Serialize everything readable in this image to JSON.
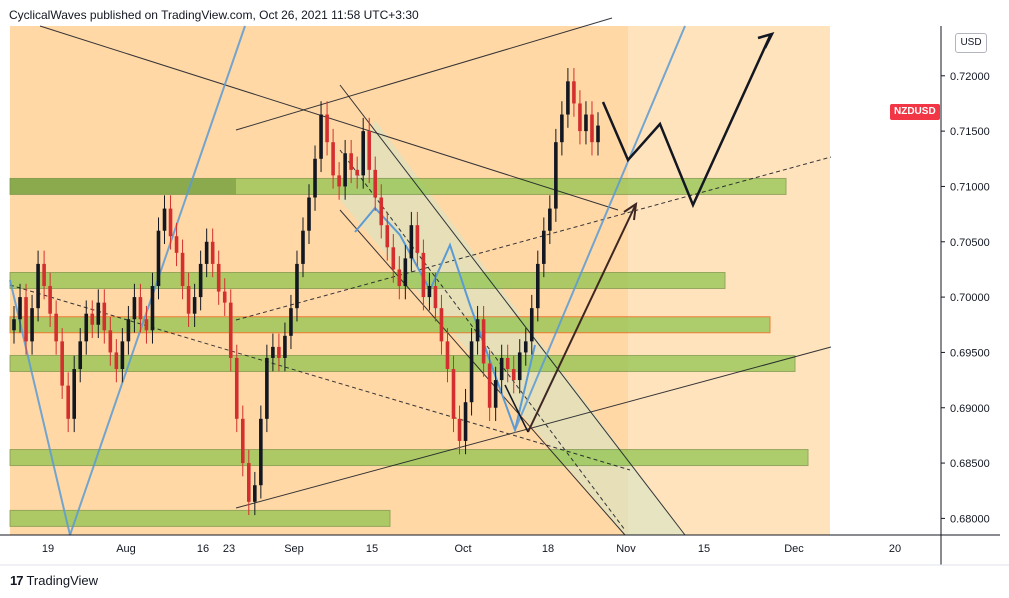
{
  "header": {
    "publish_line": "CyclicalWaves published on TradingView.com, Oct 26, 2021 11:58 UTC+3:30"
  },
  "footer": {
    "brand": "TradingView",
    "logo_glyph": "17"
  },
  "price_axis": {
    "currency_label": "USD",
    "symbol_label": "NZDUSD",
    "symbol_color": "#f23645",
    "ticks": [
      "0.72000",
      "0.71500",
      "0.71000",
      "0.70500",
      "0.70000",
      "0.69500",
      "0.69000",
      "0.68500",
      "0.68000"
    ]
  },
  "chart_data": {
    "type": "candlestick",
    "symbol": "NZDUSD",
    "y_range": [
      0.6785,
      0.7245
    ],
    "x_tick_labels": [
      "19",
      "Aug",
      "16",
      "23",
      "Sep",
      "15",
      "Oct",
      "18",
      "Nov",
      "15",
      "Dec",
      "20"
    ],
    "close_series": [
      0.698,
      0.7,
      0.696,
      0.699,
      0.703,
      0.701,
      0.6985,
      0.696,
      0.692,
      0.689,
      0.6935,
      0.696,
      0.6985,
      0.6975,
      0.6995,
      0.697,
      0.695,
      0.6935,
      0.696,
      0.698,
      0.7,
      0.698,
      0.697,
      0.701,
      0.706,
      0.708,
      0.7055,
      0.704,
      0.701,
      0.6985,
      0.7,
      0.703,
      0.705,
      0.703,
      0.7005,
      0.6995,
      0.6945,
      0.689,
      0.685,
      0.6815,
      0.683,
      0.689,
      0.6945,
      0.6955,
      0.6945,
      0.6965,
      0.699,
      0.703,
      0.706,
      0.709,
      0.7125,
      0.7165,
      0.714,
      0.711,
      0.71,
      0.713,
      0.7115,
      0.711,
      0.715,
      0.7115,
      0.709,
      0.7065,
      0.7045,
      0.7025,
      0.701,
      0.7035,
      0.7065,
      0.704,
      0.7,
      0.701,
      0.699,
      0.696,
      0.6935,
      0.689,
      0.687,
      0.6905,
      0.696,
      0.698,
      0.694,
      0.69,
      0.6925,
      0.6945,
      0.6935,
      0.6925,
      0.695,
      0.696,
      0.699,
      0.703,
      0.706,
      0.708,
      0.714,
      0.7165,
      0.7195,
      0.7175,
      0.715,
      0.7165,
      0.714,
      0.7155
    ],
    "levels": [
      0.71,
      0.7015,
      0.6975,
      0.694,
      0.6855,
      0.68
    ],
    "level_color": "#8bc34a",
    "bull_color": "#131722",
    "bear_color": "#d32f2f",
    "background_color": "#ffe0b2",
    "projection_color": "#131722",
    "channel_line_color": "#5b9bd5",
    "grid": false
  }
}
